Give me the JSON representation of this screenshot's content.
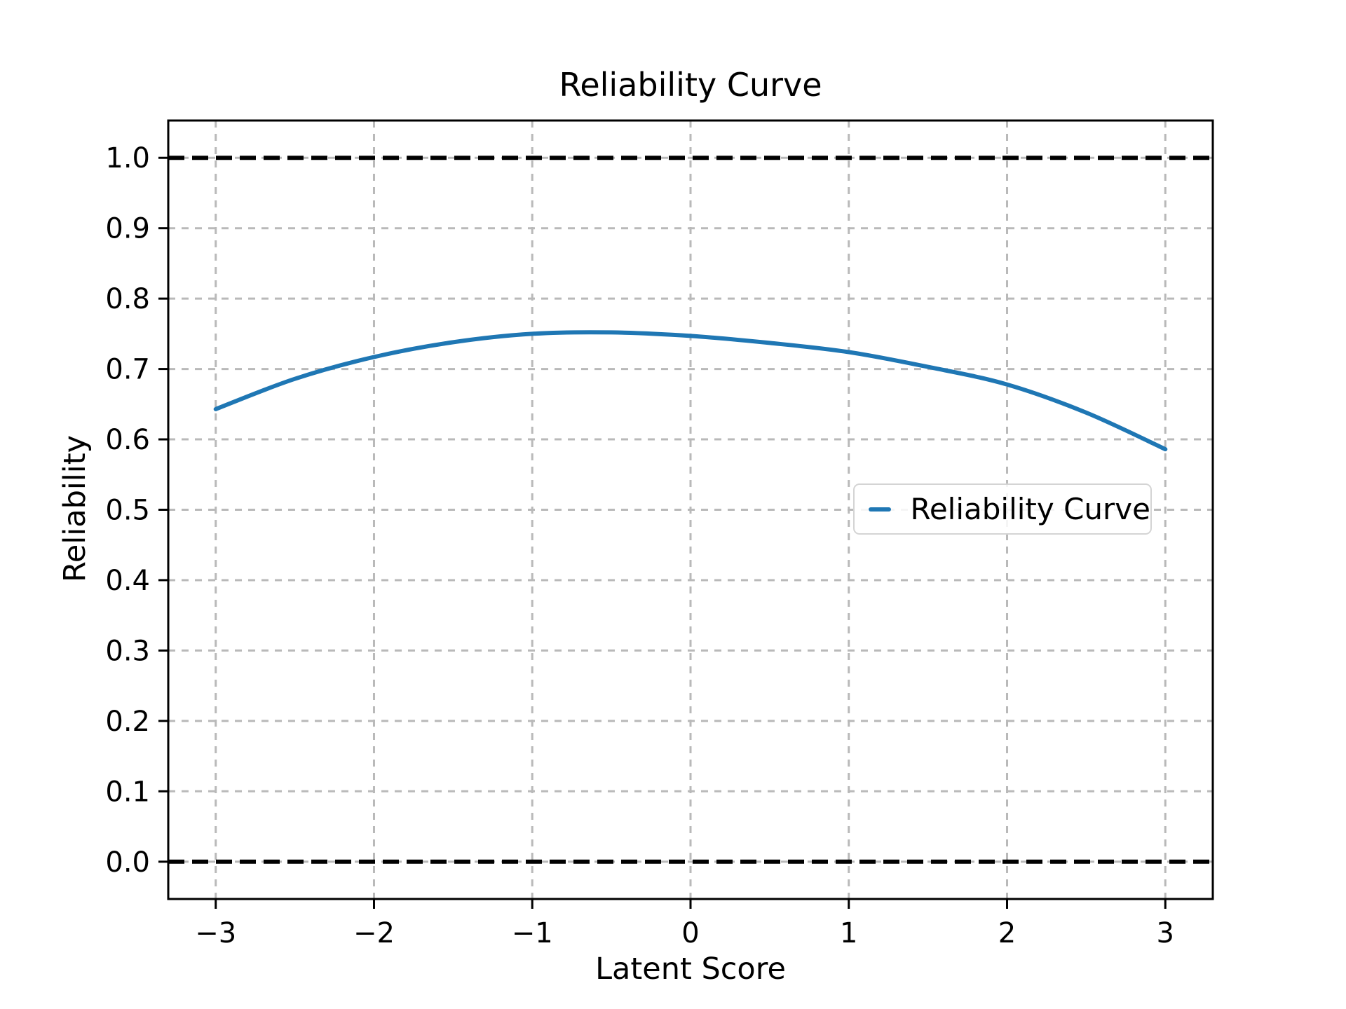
{
  "page": {
    "background_color": "#ffffff"
  },
  "chart_data": {
    "type": "line",
    "title": "Reliability Curve",
    "xlabel": "Latent Score",
    "ylabel": "Reliability",
    "xlim": [
      -3.3,
      3.3
    ],
    "ylim": [
      -0.053,
      1.053
    ],
    "grid": true,
    "grid_style": "dashed",
    "grid_color": "#b9b9b9",
    "x_ticks": [
      -3,
      -2,
      -1,
      0,
      1,
      2,
      3
    ],
    "x_tick_labels": [
      "−3",
      "−2",
      "−1",
      "0",
      "1",
      "2",
      "3"
    ],
    "y_ticks": [
      0.0,
      0.1,
      0.2,
      0.3,
      0.4,
      0.5,
      0.6,
      0.7,
      0.8,
      0.9,
      1.0
    ],
    "y_tick_labels": [
      "0.0",
      "0.1",
      "0.2",
      "0.3",
      "0.4",
      "0.5",
      "0.6",
      "0.7",
      "0.8",
      "0.9",
      "1.0"
    ],
    "series": [
      {
        "name": "Reliability Curve",
        "color": "#1f77b4",
        "line_width": 6,
        "x": [
          -3.0,
          -2.5,
          -2.0,
          -1.5,
          -1.0,
          -0.5,
          0.0,
          0.5,
          1.0,
          1.5,
          2.0,
          2.5,
          3.0
        ],
        "y": [
          0.643,
          0.686,
          0.717,
          0.738,
          0.75,
          0.752,
          0.747,
          0.737,
          0.724,
          0.703,
          0.678,
          0.638,
          0.586
        ]
      }
    ],
    "reference_lines": [
      {
        "y": 0.0,
        "style": "dashed",
        "color": "#000000"
      },
      {
        "y": 1.0,
        "style": "dashed",
        "color": "#000000"
      }
    ],
    "legend": {
      "position": "center-right",
      "entries": [
        {
          "label": "Reliability Curve",
          "color": "#1f77b4"
        }
      ]
    }
  }
}
